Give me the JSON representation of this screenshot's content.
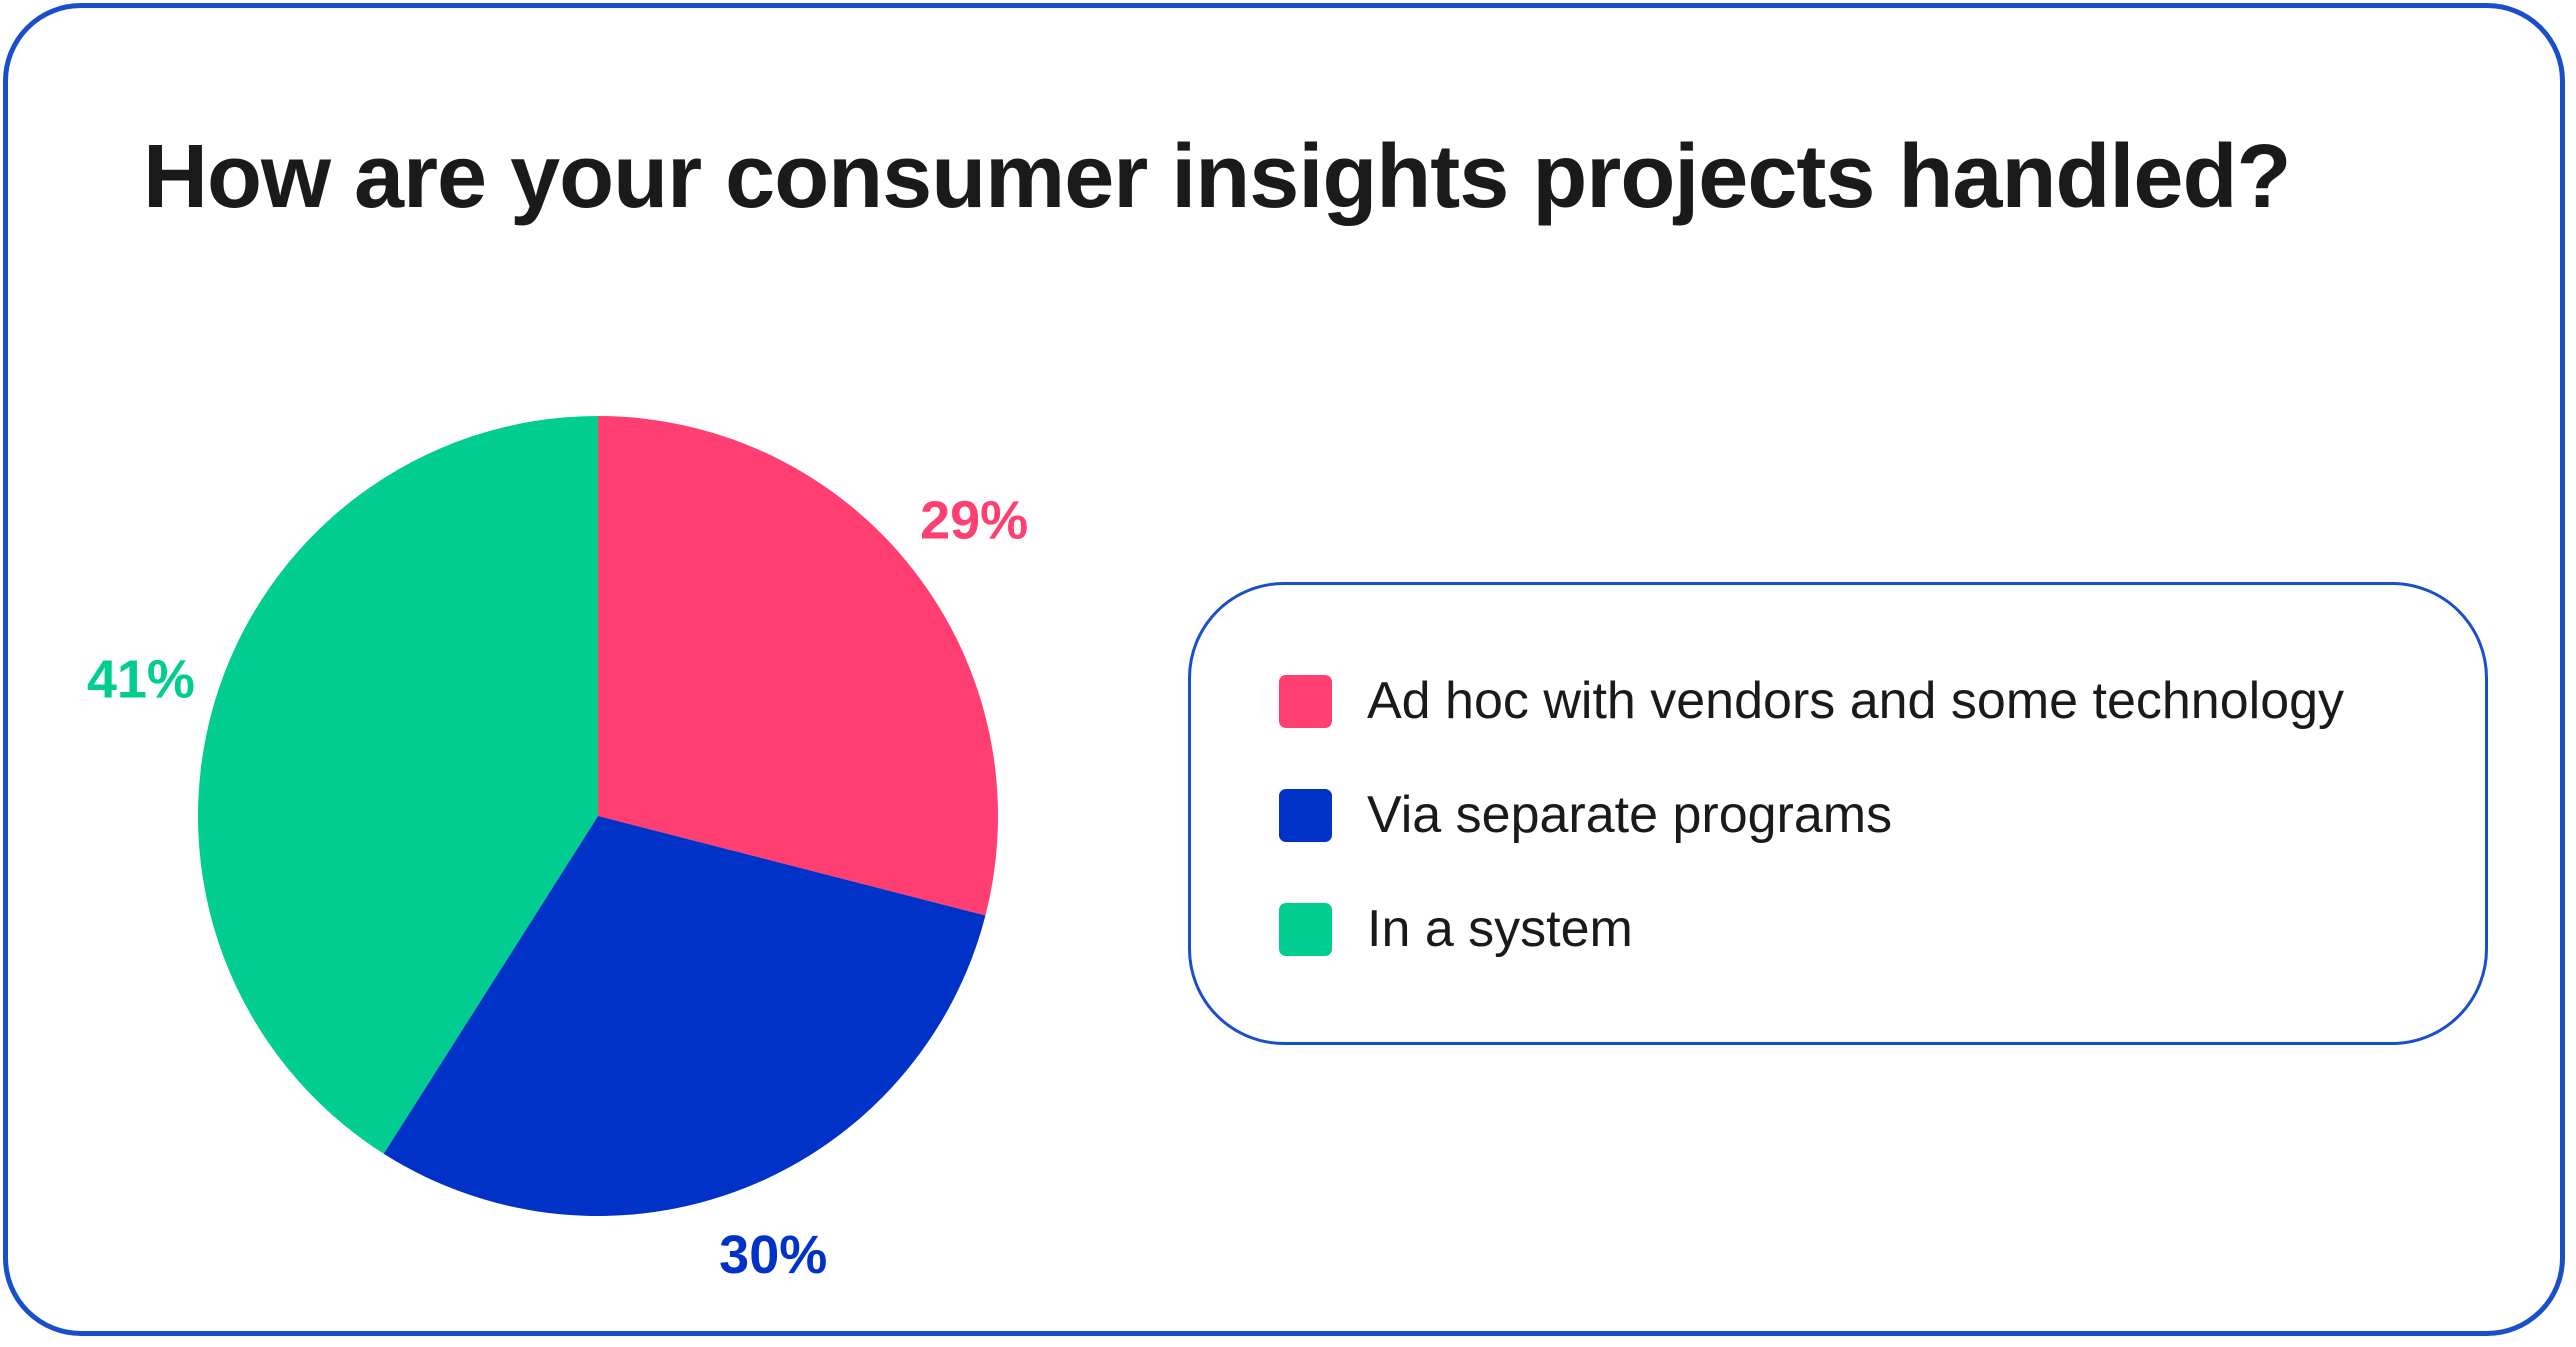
{
  "chart_data": {
    "type": "pie",
    "title": "How are your consumer insights projects handled?",
    "slices": [
      {
        "label": "Ad hoc with vendors and some technology",
        "value": 29,
        "display": "29%",
        "color": "#ff3f72"
      },
      {
        "label": "Via separate programs",
        "value": 30,
        "display": "30%",
        "color": "#0032c8"
      },
      {
        "label": "In a system",
        "value": 41,
        "display": "41%",
        "color": "#00cd8f"
      }
    ],
    "start_angle": "top, clockwise",
    "legend_position": "right"
  }
}
